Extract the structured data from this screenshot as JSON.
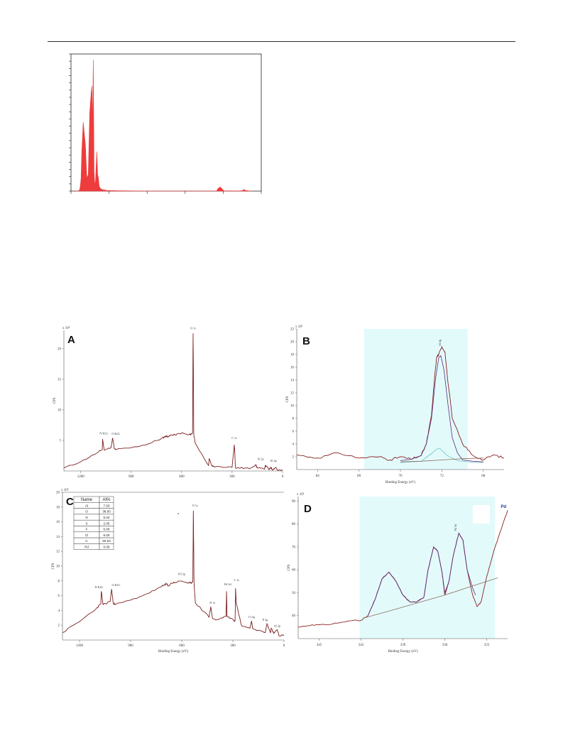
{
  "figure_top": {
    "chart_data": {
      "type": "area",
      "color": "#ee3c3c",
      "x": [
        0.0,
        0.05,
        0.08,
        0.1,
        0.11,
        0.12,
        0.13,
        0.15,
        0.18,
        0.2,
        0.22,
        0.24,
        0.26,
        0.27,
        0.28,
        0.29,
        0.3,
        0.31,
        0.32,
        0.33,
        0.34,
        0.35,
        0.36,
        0.37,
        0.38,
        0.4,
        0.42,
        0.44,
        0.45,
        0.46,
        0.47,
        0.48,
        0.5,
        0.52,
        0.55,
        0.6,
        0.65,
        0.7,
        0.8,
        0.9,
        1.0,
        1.1,
        1.2,
        1.3,
        1.4,
        1.5,
        1.6,
        1.7,
        1.8,
        1.9,
        2.0,
        2.02,
        2.05,
        2.08,
        2.1,
        2.2,
        2.3,
        2.35,
        2.38,
        2.4,
        2.45,
        2.5
      ],
      "values": [
        0,
        0,
        0,
        2,
        8,
        20,
        60,
        105,
        70,
        20,
        25,
        120,
        150,
        160,
        100,
        200,
        30,
        10,
        15,
        40,
        60,
        25,
        20,
        8,
        5,
        3,
        2,
        2,
        1.5,
        1.5,
        1,
        1,
        1,
        0.8,
        0.8,
        0.6,
        0.5,
        0.4,
        0.3,
        0.2,
        0.2,
        0.15,
        0.1,
        0.1,
        0.1,
        0.1,
        0.1,
        0.1,
        0.1,
        0.1,
        0.1,
        4,
        6,
        3,
        0.5,
        0.3,
        0.2,
        0.4,
        2.5,
        1,
        0.2,
        0
      ]
    }
  },
  "panel_A": {
    "letter": "A",
    "y_multiplier": "x 10⁴",
    "y_axis_label": "CPS",
    "chart_data": {
      "type": "line",
      "x_reversed": true,
      "xlim": [
        1300,
        0
      ],
      "ylim": [
        0,
        23
      ],
      "x_ticks": [
        "1200",
        "900",
        "600",
        "300",
        "0"
      ],
      "y_ticks": [
        "5",
        "10",
        "15",
        "20",
        "25"
      ],
      "series": [
        {
          "x": [
            1300,
            1200,
            1100,
            1072,
            1070,
            1060,
            1020,
            1010,
            1000,
            990,
            900,
            800,
            720,
            700,
            690,
            680,
            660,
            640,
            600,
            560,
            545,
            535,
            532,
            530,
            528,
            520,
            440,
            436,
            420,
            400,
            300,
            287,
            284,
            280,
            250,
            200,
            160,
            150,
            110,
            100,
            80,
            70,
            60,
            40,
            30,
            0
          ],
          "y": [
            0.5,
            1.5,
            3,
            3.5,
            5.2,
            3.4,
            3.8,
            5.4,
            3.6,
            3.5,
            3.8,
            4.4,
            5.3,
            5.6,
            5.7,
            5.6,
            5.9,
            5.9,
            6.2,
            5.9,
            6.0,
            6.2,
            22.5,
            16,
            6.0,
            4.6,
            0.9,
            2.0,
            0.8,
            0.7,
            0.6,
            4.3,
            3.0,
            0.5,
            0.5,
            0.4,
            1.0,
            0.5,
            0.3,
            0.9,
            0.2,
            0.6,
            0.2,
            0.6,
            0.1,
            0.1
          ]
        }
      ]
    },
    "peak_labels": [
      "O 1s",
      "N KLL",
      "O KLL",
      "C 1s",
      "Si 2p",
      "Al 2p"
    ]
  },
  "panel_B": {
    "letter": "B",
    "y_multiplier": "x 10³",
    "y_axis_label": "CPS",
    "x_axis_label": "Binding Energy (eV)",
    "peak_label": "Al 2p",
    "chart_data": {
      "type": "line",
      "x_reversed": true,
      "xlim": [
        86,
        66
      ],
      "ylim": [
        0,
        22
      ],
      "x_ticks": [
        "84",
        "80",
        "76",
        "72",
        "68"
      ],
      "y_ticks": [
        "2",
        "4",
        "6",
        "8",
        "10",
        "12",
        "14",
        "16",
        "18",
        "20",
        "22"
      ],
      "series": [
        {
          "name": "raw",
          "x": [
            86,
            84,
            82,
            80,
            78,
            77,
            76,
            75,
            74,
            73.5,
            73,
            72.7,
            72.5,
            72.3,
            72,
            71.7,
            71.5,
            71,
            70,
            69,
            68,
            67,
            66
          ],
          "y": [
            2.3,
            1.8,
            2.6,
            1.8,
            2.0,
            1.5,
            2.0,
            1.6,
            2.2,
            4.0,
            8.5,
            14.5,
            17.6,
            18.0,
            19.2,
            18.4,
            15.0,
            8,
            4,
            2.2,
            1.5,
            2.3,
            1.8
          ]
        },
        {
          "name": "fit",
          "x": [
            76,
            75,
            74,
            73.5,
            73,
            72.6,
            72.3,
            72.1,
            71.8,
            71.4,
            71,
            70.5,
            70,
            69,
            68
          ],
          "y": [
            1.4,
            1.6,
            2.2,
            4,
            8,
            14.3,
            17.5,
            17.8,
            15.6,
            10,
            5,
            2.6,
            1.5,
            1.3,
            1.2
          ]
        },
        {
          "name": "component",
          "x": [
            76,
            74,
            73,
            72.5,
            72.2,
            72,
            71.5,
            70.5,
            69,
            68
          ],
          "y": [
            1.1,
            1.3,
            2.5,
            3.2,
            3.3,
            3.0,
            2.2,
            1.4,
            1.1,
            1.1
          ]
        },
        {
          "name": "background",
          "x": [
            76,
            74,
            72,
            70,
            68
          ],
          "y": [
            1.2,
            1.3,
            1.5,
            1.7,
            1.8
          ]
        }
      ]
    }
  },
  "panel_C": {
    "letter": "C",
    "y_multiplier": "x 10⁴",
    "y_axis_label": "CPS",
    "x_axis_label": "Binding Energy (eV)",
    "table": {
      "headers": [
        "Name",
        "At%"
      ],
      "rows": [
        [
          "Al",
          "7.63"
        ],
        [
          "O",
          "38.60"
        ],
        [
          "N",
          "5.04"
        ],
        [
          "S",
          "2.05"
        ],
        [
          "F",
          "6.09"
        ],
        [
          "Cl",
          "6.00"
        ],
        [
          "C",
          "50.53"
        ],
        [
          "Pd",
          "0.09"
        ]
      ]
    },
    "chart_data": {
      "type": "line",
      "x_reversed": true,
      "xlim": [
        1300,
        0
      ],
      "ylim": [
        0,
        20
      ],
      "x_ticks": [
        "1200",
        "900",
        "600",
        "300",
        "0"
      ],
      "y_ticks": [
        "2",
        "4",
        "6",
        "8",
        "10",
        "12",
        "14",
        "16",
        "18",
        "20"
      ],
      "series": [
        {
          "x": [
            1300,
            1200,
            1100,
            1075,
            1072,
            1062,
            1020,
            1012,
            1002,
            990,
            900,
            800,
            720,
            700,
            690,
            680,
            660,
            640,
            600,
            560,
            545,
            535,
            532,
            530,
            528,
            520,
            440,
            430,
            420,
            400,
            340,
            337,
            334,
            300,
            287,
            284,
            280,
            250,
            200,
            190,
            185,
            150,
            110,
            100,
            80,
            75,
            60,
            40,
            30,
            0
          ],
          "y": [
            1,
            2.5,
            4.3,
            4.9,
            6.6,
            4.8,
            5.2,
            6.9,
            5.0,
            4.8,
            5.4,
            6.3,
            7.2,
            7.5,
            7.6,
            7.3,
            7.7,
            7.8,
            8.0,
            7.7,
            7.7,
            8.0,
            17.5,
            13,
            7.7,
            5.0,
            3.1,
            4.5,
            3.0,
            2.7,
            3.2,
            6.6,
            3.2,
            2.8,
            2.6,
            7.0,
            5.0,
            2.0,
            1.6,
            2.6,
            1.6,
            1.3,
            1.0,
            2.2,
            1.0,
            1.6,
            0.9,
            1.4,
            0.6,
            0.6
          ]
        }
      ]
    },
    "peak_labels": [
      "O 1s",
      "Pd 3p",
      "Pd 3d",
      "C 1s",
      "N KLL",
      "O KLL",
      "N 1s",
      "Cl 2p",
      "P 2p",
      "Al 2p"
    ]
  },
  "panel_D": {
    "letter": "D",
    "y_multiplier": "x 10²",
    "y_axis_label": "CPS",
    "x_axis_label": "Binding Energy (eV)",
    "corner_label": "Pd",
    "peak_label": "Pd 3d",
    "chart_data": {
      "type": "line",
      "x_reversed": true,
      "xlim": [
        346.5,
        331.5
      ],
      "ylim": [
        30,
        92
      ],
      "x_ticks": [
        "345",
        "342",
        "339",
        "336",
        "333"
      ],
      "y_ticks": [
        "40",
        "50",
        "60",
        "70",
        "80",
        "90"
      ],
      "series": [
        {
          "name": "raw",
          "x": [
            346.5,
            345.5,
            344.5,
            343.5,
            342.5,
            342,
            341.5,
            341,
            340.5,
            340,
            339.5,
            339,
            338.5,
            338,
            337.5,
            337.2,
            336.8,
            336.5,
            336.2,
            336,
            335.7,
            335.4,
            335,
            334.7,
            334.4,
            334,
            333.7,
            333.4,
            333,
            332.5,
            332,
            331.5
          ],
          "y": [
            35,
            36,
            36,
            37,
            38,
            38,
            40,
            47,
            56,
            59,
            55,
            49,
            46,
            46,
            48,
            60,
            70,
            68,
            59,
            49,
            55,
            66,
            76,
            73,
            60,
            49,
            44,
            46,
            57,
            68,
            77,
            86
          ]
        },
        {
          "name": "fit",
          "x": [
            341.5,
            341,
            340.5,
            340,
            339.5,
            339,
            338.5,
            338,
            337.5,
            337.2,
            336.8,
            336.5,
            336.2,
            336,
            335.7,
            335.4,
            335,
            334.7,
            334.4,
            334,
            333.8
          ],
          "y": [
            40,
            47,
            56,
            59,
            55,
            49,
            46,
            46,
            48,
            60,
            70,
            68,
            59,
            50,
            55,
            66,
            76,
            73,
            60,
            52,
            49
          ]
        },
        {
          "name": "background",
          "x": [
            341.8,
            340,
            338,
            336,
            334,
            332.2
          ],
          "y": [
            39,
            42,
            45.5,
            49,
            53,
            56.5
          ]
        }
      ]
    }
  }
}
